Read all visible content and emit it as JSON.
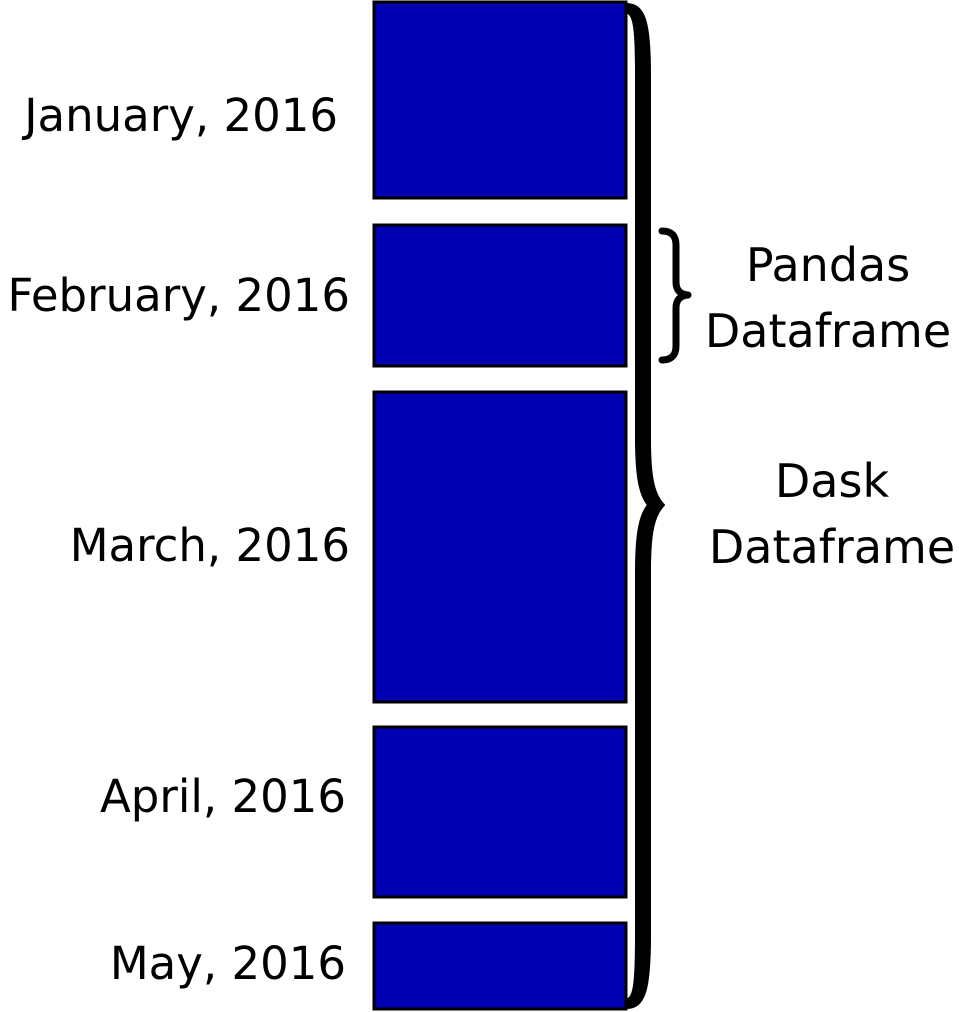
{
  "diagram": {
    "partitions": [
      {
        "label": "January, 2016"
      },
      {
        "label": "February, 2016"
      },
      {
        "label": "March, 2016"
      },
      {
        "label": "April, 2016"
      },
      {
        "label": "May, 2016"
      }
    ],
    "pandas_brace": {
      "line1": "Pandas",
      "line2": "Dataframe"
    },
    "dask_brace": {
      "line1": "Dask",
      "line2": "Dataframe"
    }
  },
  "colors": {
    "block_fill": "#0000b3",
    "block_stroke": "#000000",
    "brace": "#000000"
  }
}
